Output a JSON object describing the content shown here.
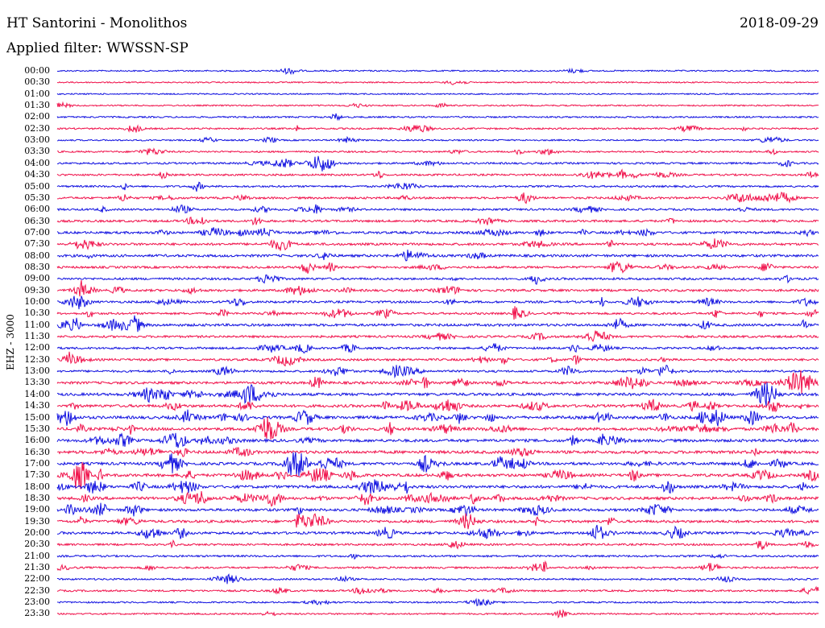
{
  "header": {
    "station": "HT Santorini - Monolithos",
    "date": "2018-09-29",
    "filter": "Applied filter: WWSSN-SP"
  },
  "colors": {
    "even": "#1010e0",
    "odd": "#f0104a"
  },
  "chart_data": {
    "type": "line",
    "title": "HT Santorini - Monolithos",
    "ylabel": "EHZ - 3000",
    "rows": [
      "00:00",
      "00:30",
      "01:00",
      "01:30",
      "02:00",
      "02:30",
      "03:00",
      "03:30",
      "04:00",
      "04:30",
      "05:00",
      "05:30",
      "06:00",
      "06:30",
      "07:00",
      "07:30",
      "08:00",
      "08:30",
      "09:00",
      "09:30",
      "10:00",
      "10:30",
      "11:00",
      "11:30",
      "12:00",
      "12:30",
      "13:00",
      "13:30",
      "14:00",
      "14:30",
      "15:00",
      "15:30",
      "16:00",
      "16:30",
      "17:00",
      "17:30",
      "18:00",
      "18:30",
      "19:00",
      "19:30",
      "20:00",
      "20:30",
      "21:00",
      "21:30",
      "22:00",
      "22:30",
      "23:00",
      "23:30"
    ],
    "activity": [
      0.2,
      0.15,
      0.15,
      0.2,
      0.3,
      0.35,
      0.25,
      0.35,
      0.45,
      0.45,
      0.45,
      0.55,
      0.5,
      0.6,
      0.7,
      0.7,
      0.75,
      0.6,
      0.6,
      0.65,
      0.6,
      0.55,
      0.75,
      0.6,
      0.55,
      0.6,
      0.55,
      0.75,
      0.85,
      0.85,
      0.95,
      0.95,
      0.9,
      0.95,
      0.9,
      0.9,
      0.9,
      0.9,
      0.8,
      0.8,
      0.75,
      0.5,
      0.45,
      0.45,
      0.4,
      0.4,
      0.3,
      0.3
    ]
  }
}
